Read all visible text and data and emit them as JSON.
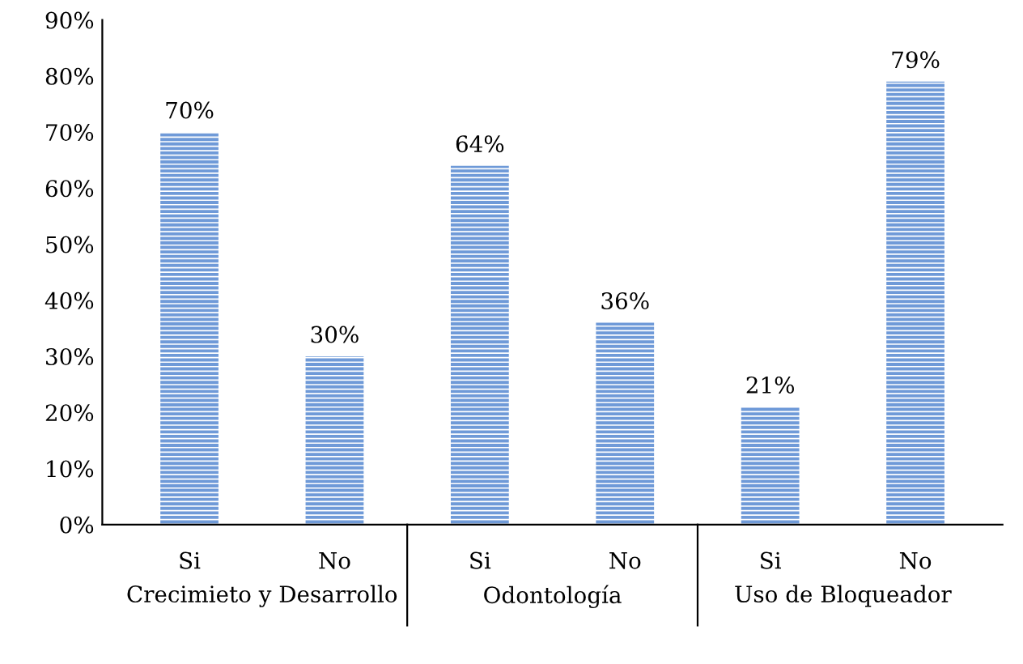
{
  "chart_data": {
    "type": "bar",
    "categories": [
      "Si",
      "No",
      "Si",
      "No",
      "Si",
      "No"
    ],
    "values": [
      70,
      30,
      64,
      36,
      21,
      79
    ],
    "color": "#6f9ad8",
    "value_labels": [
      "70%",
      "30%",
      "64%",
      "36%",
      "21%",
      "79%"
    ],
    "ylim": [
      0,
      90
    ],
    "yticks": [
      {
        "value": 0,
        "label": "0%"
      },
      {
        "value": 10,
        "label": "10%"
      },
      {
        "value": 20,
        "label": "20%"
      },
      {
        "value": 30,
        "label": "30%"
      },
      {
        "value": 40,
        "label": "40%"
      },
      {
        "value": 50,
        "label": "50%"
      },
      {
        "value": 60,
        "label": "60%"
      },
      {
        "value": 70,
        "label": "70%"
      },
      {
        "value": 80,
        "label": "80%"
      },
      {
        "value": 90,
        "label": "90%"
      }
    ],
    "annotations": [
      "Crecimieto y Desarrollo",
      "Odontología",
      "Uso de Bloqueador"
    ],
    "grid": false,
    "legend": false
  }
}
